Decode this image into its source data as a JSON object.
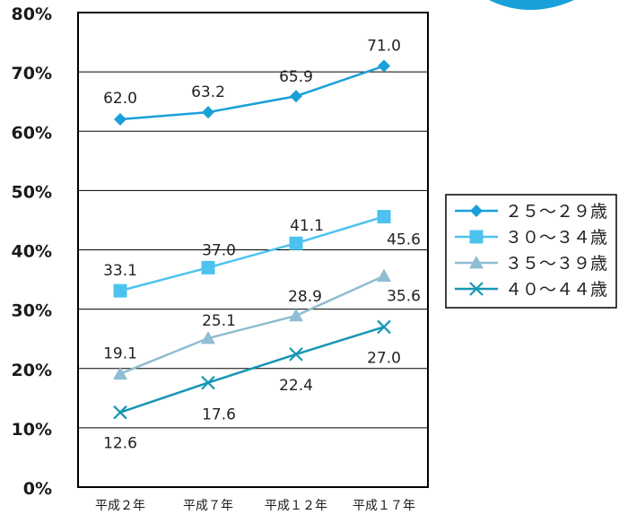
{
  "chart_data": {
    "type": "line",
    "categories": [
      "平成２年",
      "平成７年",
      "平成１２年",
      "平成１７年"
    ],
    "ylim": [
      0,
      80
    ],
    "yticks": [
      0,
      10,
      20,
      30,
      40,
      50,
      60,
      70,
      80
    ],
    "ytick_labels": [
      "0%",
      "10%",
      "20%",
      "30%",
      "40%",
      "50%",
      "60%",
      "70%",
      "80%"
    ],
    "grid": true,
    "legend_position": "right",
    "series": [
      {
        "name": "２５〜２９歳",
        "values": [
          62.0,
          63.2,
          65.9,
          71.0
        ],
        "labels": [
          "62.0",
          "63.2",
          "65.9",
          "71.0"
        ],
        "marker": "diamond",
        "color": "#1aa0d8"
      },
      {
        "name": "３０〜３４歳",
        "values": [
          33.1,
          37.0,
          41.1,
          45.6
        ],
        "labels": [
          "33.1",
          "37.0",
          "41.1",
          "45.6"
        ],
        "marker": "square",
        "color": "#4cc3ef"
      },
      {
        "name": "３５〜３９歳",
        "values": [
          19.1,
          25.1,
          28.9,
          35.6
        ],
        "labels": [
          "19.1",
          "25.1",
          "28.9",
          "35.6"
        ],
        "marker": "triangle",
        "color": "#8fbdd1"
      },
      {
        "name": "４０〜４４歳",
        "values": [
          12.6,
          17.6,
          22.4,
          27.0
        ],
        "labels": [
          "12.6",
          "17.6",
          "22.4",
          "27.0"
        ],
        "marker": "x",
        "color": "#1596b4"
      }
    ]
  }
}
